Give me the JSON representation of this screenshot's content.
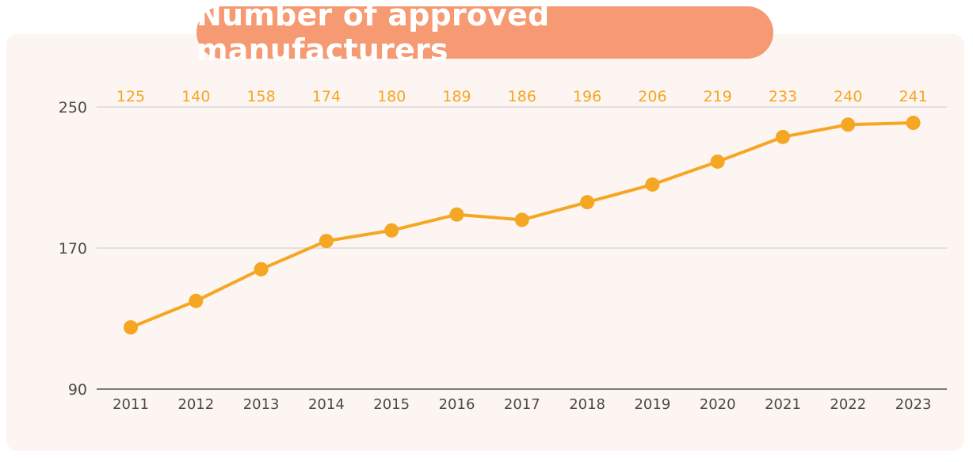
{
  "chart_data": {
    "type": "line",
    "title": "Number of approved manufacturers",
    "categories": [
      "2011",
      "2012",
      "2013",
      "2014",
      "2015",
      "2016",
      "2017",
      "2018",
      "2019",
      "2020",
      "2021",
      "2022",
      "2023"
    ],
    "series": [
      {
        "values": [
          125,
          140,
          158,
          174,
          180,
          189,
          186,
          196,
          206,
          219,
          233,
          240,
          241
        ]
      }
    ],
    "xlabel": "",
    "ylabel": "",
    "ylim": [
      90,
      250
    ],
    "yticks": [
      90,
      170,
      250
    ],
    "grid": true,
    "legend": "none",
    "data_labels": "above plot",
    "colors": {
      "line": "#f5a623",
      "marker": "#f5a623",
      "data_label": "#f5a623",
      "title_background": "#f59a72",
      "panel_background": "#fdf5f1",
      "grid": "#d9d9d9",
      "axis": "#555555"
    }
  }
}
